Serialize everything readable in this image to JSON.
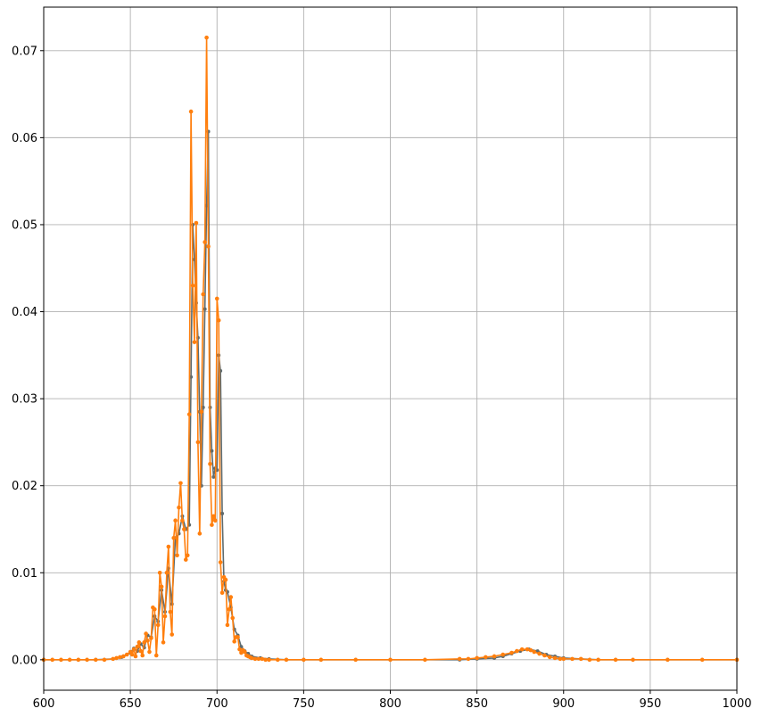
{
  "colors": {
    "background": "#ffffff",
    "grid": "#b0b0b0",
    "axes": "#000000",
    "series_dark": "#5f6b6e",
    "series_orange": "#ff7f0e"
  },
  "chart_data": {
    "type": "line",
    "title": "",
    "xlabel": "",
    "ylabel": "",
    "xlim": [
      600,
      1000
    ],
    "ylim": [
      -0.0035,
      0.075
    ],
    "grid": true,
    "legend": "none",
    "x_ticks": [
      {
        "value": 600,
        "label": "600"
      },
      {
        "value": 650,
        "label": "650"
      },
      {
        "value": 700,
        "label": "700"
      },
      {
        "value": 750,
        "label": "750"
      },
      {
        "value": 800,
        "label": "800"
      },
      {
        "value": 850,
        "label": "850"
      },
      {
        "value": 900,
        "label": "900"
      },
      {
        "value": 950,
        "label": "950"
      },
      {
        "value": 1000,
        "label": "1000"
      }
    ],
    "y_ticks": [
      {
        "value": 0.0,
        "label": "0.00"
      },
      {
        "value": 0.01,
        "label": "0.01"
      },
      {
        "value": 0.02,
        "label": "0.02"
      },
      {
        "value": 0.03,
        "label": "0.03"
      },
      {
        "value": 0.04,
        "label": "0.04"
      },
      {
        "value": 0.05,
        "label": "0.05"
      },
      {
        "value": 0.06,
        "label": "0.06"
      },
      {
        "value": 0.07,
        "label": "0.07"
      }
    ],
    "series": [
      {
        "color": "#5f6b6e",
        "x": [
          600,
          610,
          620,
          630,
          640,
          645,
          648,
          650,
          652,
          654,
          656,
          658,
          660,
          662,
          664,
          666,
          668,
          670,
          672,
          674,
          676,
          678,
          680,
          682,
          684,
          685,
          686,
          687,
          688,
          689,
          690,
          691,
          692,
          693,
          694,
          695,
          696,
          697,
          698,
          699,
          700,
          701,
          702,
          703,
          704,
          705,
          706,
          708,
          710,
          712,
          714,
          716,
          718,
          720,
          725,
          730,
          740,
          760,
          800,
          840,
          850,
          860,
          865,
          870,
          875,
          880,
          885,
          890,
          895,
          900,
          910,
          920,
          940,
          960,
          1000
        ],
        "y": [
          0,
          0,
          0,
          0,
          0.0001,
          0.0003,
          0.0006,
          0.0008,
          0.0013,
          0.001,
          0.0018,
          0.0014,
          0.0028,
          0.0026,
          0.005,
          0.0044,
          0.008,
          0.0055,
          0.0105,
          0.0064,
          0.014,
          0.0145,
          0.0165,
          0.015,
          0.0155,
          0.0325,
          0.05,
          0.046,
          0.041,
          0.037,
          0.0285,
          0.02,
          0.029,
          0.0403,
          0.0522,
          0.0607,
          0.029,
          0.024,
          0.021,
          0.022,
          0.0218,
          0.035,
          0.0332,
          0.0168,
          0.009,
          0.008,
          0.0078,
          0.006,
          0.0035,
          0.0028,
          0.0015,
          0.001,
          0.0007,
          0.0004,
          0.0002,
          0.0001,
          0,
          0,
          0,
          0,
          0.0001,
          0.0002,
          0.0004,
          0.0007,
          0.001,
          0.0012,
          0.001,
          0.0006,
          0.0004,
          0.0002,
          0.0001,
          0,
          0,
          0,
          0
        ]
      },
      {
        "color": "#ff7f0e",
        "x": [
          600,
          605,
          610,
          615,
          620,
          625,
          630,
          635,
          640,
          642,
          644,
          646,
          648,
          650,
          651,
          652,
          653,
          654,
          655,
          656,
          657,
          658,
          659,
          660,
          661,
          662,
          663,
          664,
          665,
          666,
          667,
          668,
          669,
          670,
          671,
          672,
          673,
          674,
          675,
          676,
          677,
          678,
          679,
          680,
          681,
          682,
          683,
          684,
          685,
          686,
          687,
          688,
          689,
          690,
          691,
          692,
          693,
          694,
          695,
          696,
          697,
          698,
          699,
          700,
          701,
          702,
          703,
          704,
          705,
          706,
          707,
          708,
          709,
          710,
          711,
          712,
          713,
          714,
          715,
          716,
          717,
          718,
          719,
          720,
          722,
          724,
          726,
          728,
          730,
          735,
          740,
          750,
          760,
          780,
          800,
          820,
          840,
          845,
          850,
          855,
          860,
          865,
          870,
          873,
          876,
          879,
          881,
          883,
          886,
          889,
          892,
          895,
          898,
          900,
          905,
          910,
          915,
          920,
          930,
          940,
          960,
          980,
          1000
        ],
        "y": [
          0,
          0,
          0,
          0,
          0,
          0,
          0,
          0,
          0.0001,
          0.0002,
          0.0003,
          0.0004,
          0.0006,
          0.0009,
          0.0006,
          0.0012,
          0.0004,
          0.0015,
          0.002,
          0.001,
          0.0005,
          0.002,
          0.003,
          0.0022,
          0.0009,
          0.0025,
          0.006,
          0.0058,
          0.0005,
          0.004,
          0.01,
          0.0084,
          0.002,
          0.005,
          0.01,
          0.013,
          0.0055,
          0.0029,
          0.014,
          0.016,
          0.012,
          0.0175,
          0.0203,
          0.016,
          0.015,
          0.0115,
          0.012,
          0.0282,
          0.063,
          0.043,
          0.0365,
          0.0502,
          0.025,
          0.0145,
          0.0285,
          0.042,
          0.048,
          0.0715,
          0.0475,
          0.0225,
          0.0155,
          0.0165,
          0.016,
          0.0415,
          0.039,
          0.0112,
          0.0077,
          0.0095,
          0.0092,
          0.004,
          0.0058,
          0.0072,
          0.0048,
          0.0021,
          0.0026,
          0.0026,
          0.0012,
          0.0008,
          0.0011,
          0.0009,
          0.0005,
          0.0004,
          0.0003,
          0.0002,
          0.0001,
          0.0001,
          0.0001,
          0,
          0,
          0,
          0,
          0,
          0,
          0,
          0,
          0,
          0.0001,
          0.0001,
          0.0002,
          0.0003,
          0.0004,
          0.0006,
          0.0008,
          0.001,
          0.0012,
          0.0012,
          0.0011,
          0.0009,
          0.0007,
          0.0005,
          0.0003,
          0.0002,
          0.0001,
          0.0001,
          0.0001,
          0.0001,
          0,
          0,
          0,
          0,
          0,
          0,
          0
        ]
      }
    ]
  }
}
